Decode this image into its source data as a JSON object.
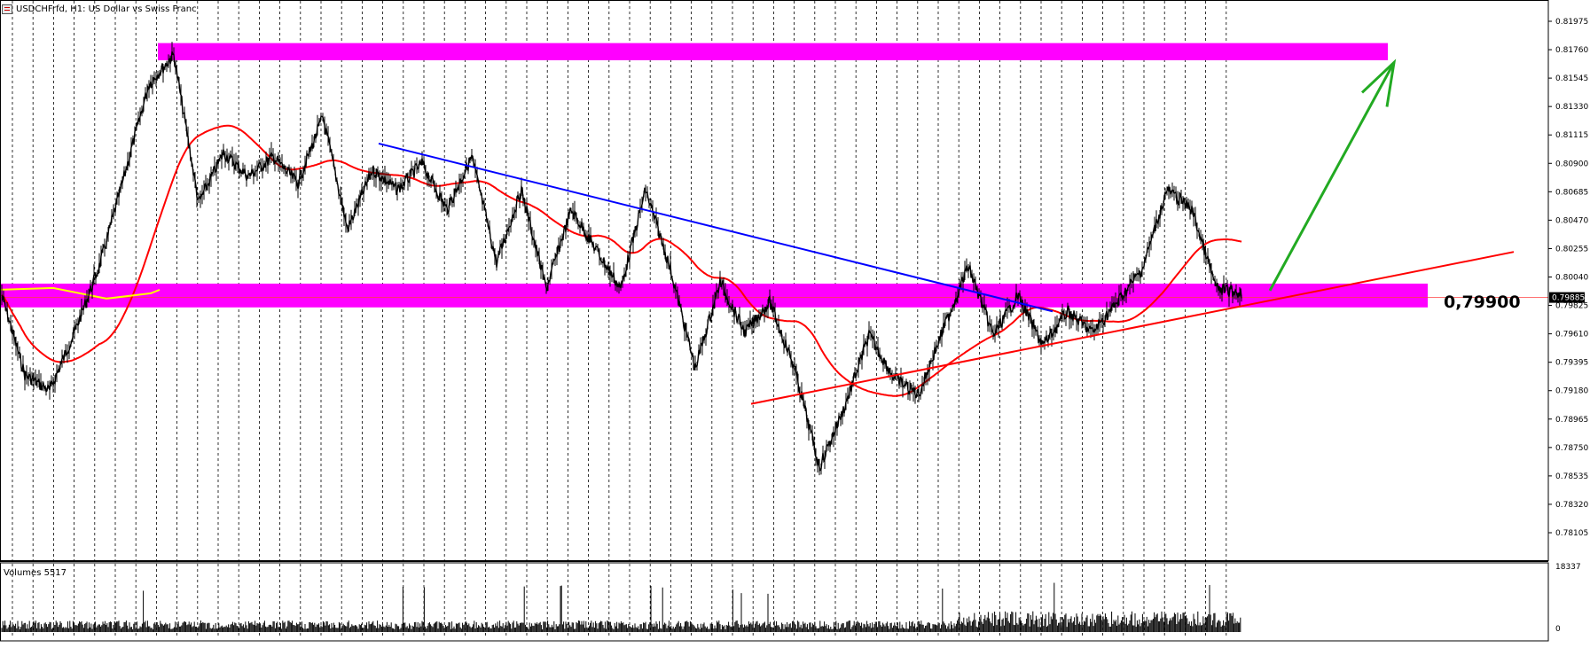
{
  "window": {
    "title": "USDCHFrfd, H1:  US Dollar vs Swiss Franc"
  },
  "colors": {
    "zone": "#ff00ff",
    "trend_down": "#0000ff",
    "trend_up": "#ff0000",
    "ma_red": "#ff0000",
    "ma_yellow": "#ffff00",
    "arrow": "#22aa22",
    "candles": "#000000",
    "grid": "#000000"
  },
  "chart_data": {
    "type": "line",
    "symbol": "USDCHFrfd",
    "timeframe": "H1",
    "title": "USDCHFrfd, H1:  US Dollar vs Swiss Franc",
    "y_tick_labels": [
      "0.81975",
      "0.81760",
      "0.81545",
      "0.81330",
      "0.81115",
      "0.80900",
      "0.80685",
      "0.80470",
      "0.80255",
      "0.80040",
      "0.79825",
      "0.79610",
      "0.79395",
      "0.79180",
      "0.78965",
      "0.78750",
      "0.78535",
      "0.78320",
      "0.78105"
    ],
    "ylim": [
      0.78,
      0.8208
    ],
    "grid": "vertical dashed",
    "current_price_label": "0.79885",
    "price_path_x": [
      0,
      2,
      4,
      6,
      8,
      10,
      12,
      14,
      16,
      18,
      20,
      22,
      24,
      26,
      28,
      30,
      32,
      34,
      36,
      38,
      40,
      42,
      44,
      46,
      48,
      50,
      52,
      54,
      56,
      58,
      60,
      62,
      64,
      66,
      68,
      70,
      72,
      74,
      76,
      78,
      80,
      82,
      84,
      86,
      88,
      90,
      92,
      94,
      96,
      98,
      100
    ],
    "price_path_y": [
      0.7995,
      0.793,
      0.7918,
      0.7962,
      0.8012,
      0.808,
      0.815,
      0.8172,
      0.806,
      0.8098,
      0.808,
      0.8095,
      0.8075,
      0.8125,
      0.804,
      0.8085,
      0.807,
      0.809,
      0.8055,
      0.8095,
      0.8015,
      0.807,
      0.7995,
      0.8055,
      0.8025,
      0.7995,
      0.807,
      0.801,
      0.7935,
      0.8,
      0.7962,
      0.7985,
      0.7935,
      0.786,
      0.7905,
      0.796,
      0.7928,
      0.7915,
      0.7965,
      0.8012,
      0.796,
      0.799,
      0.7952,
      0.7978,
      0.7962,
      0.7985,
      0.801,
      0.807,
      0.8055,
      0.7995,
      0.7992
    ],
    "volume_max_label": "18337",
    "volume_min_label": "0",
    "volume_label": "Volumes 5517",
    "zones": [
      {
        "from": 0.8168,
        "to": 0.8181
      },
      {
        "from": 0.7981,
        "to": 0.7999
      }
    ],
    "level_label": "0,79900",
    "trendlines": [
      {
        "name": "descending",
        "x": [
          30.5,
          80.5
        ],
        "y": [
          0.8105,
          0.7978
        ]
      },
      {
        "name": "ascending",
        "x": [
          60.5,
          95.5
        ],
        "y": [
          0.7908,
          0.8023
        ]
      }
    ],
    "arrow": {
      "x": [
        79.5,
        87.5
      ],
      "y": [
        0.7991,
        0.8165
      ]
    }
  }
}
